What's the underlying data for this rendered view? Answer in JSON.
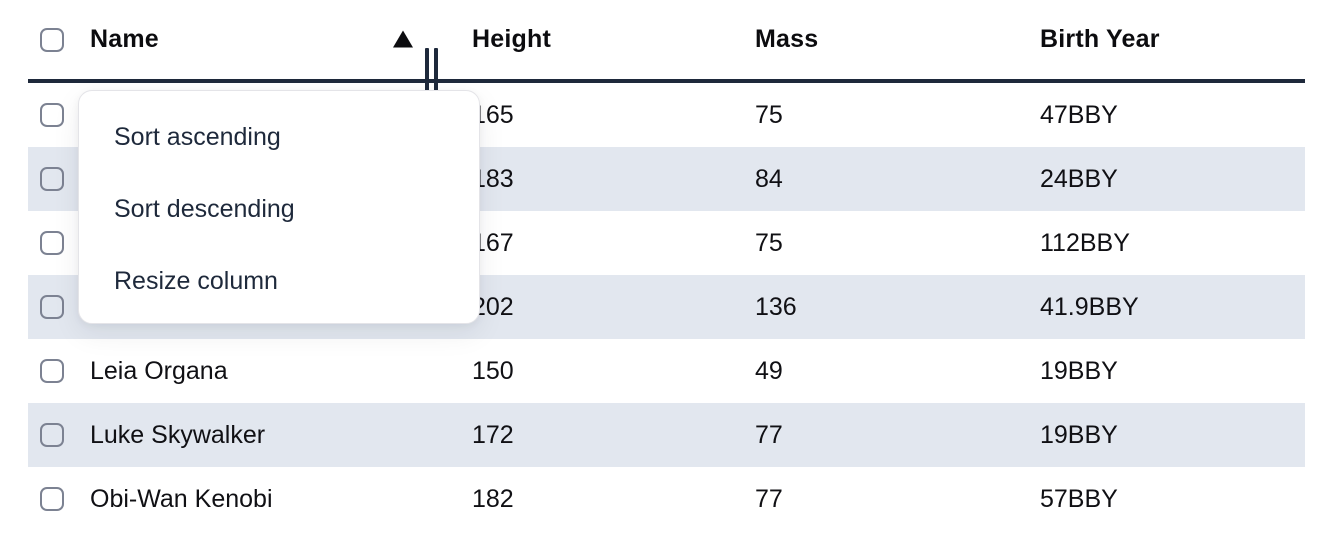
{
  "table": {
    "columns": [
      "Name",
      "Height",
      "Mass",
      "Birth Year"
    ],
    "sort_state": "ascending",
    "rows": [
      {
        "name": "",
        "height": "165",
        "mass": "75",
        "birth_year": "47BBY"
      },
      {
        "name": "",
        "height": "183",
        "mass": "84",
        "birth_year": "24BBY"
      },
      {
        "name": "",
        "height": "167",
        "mass": "75",
        "birth_year": "112BBY"
      },
      {
        "name": "",
        "height": "202",
        "mass": "136",
        "birth_year": "41.9BBY"
      },
      {
        "name": "Leia Organa",
        "height": "150",
        "mass": "49",
        "birth_year": "19BBY"
      },
      {
        "name": "Luke Skywalker",
        "height": "172",
        "mass": "77",
        "birth_year": "19BBY"
      },
      {
        "name": "Obi-Wan Kenobi",
        "height": "182",
        "mass": "77",
        "birth_year": "57BBY"
      }
    ]
  },
  "menu": {
    "items": [
      "Sort ascending",
      "Sort descending",
      "Resize column"
    ]
  },
  "icons": {
    "sort_ascending": "sort-ascending-icon",
    "resize_handle": "column-resize-handle"
  },
  "colors": {
    "stripe": "#e2e7ef",
    "header_rule": "#1e293b",
    "menu_text": "#1e293b",
    "text": "#101014"
  }
}
